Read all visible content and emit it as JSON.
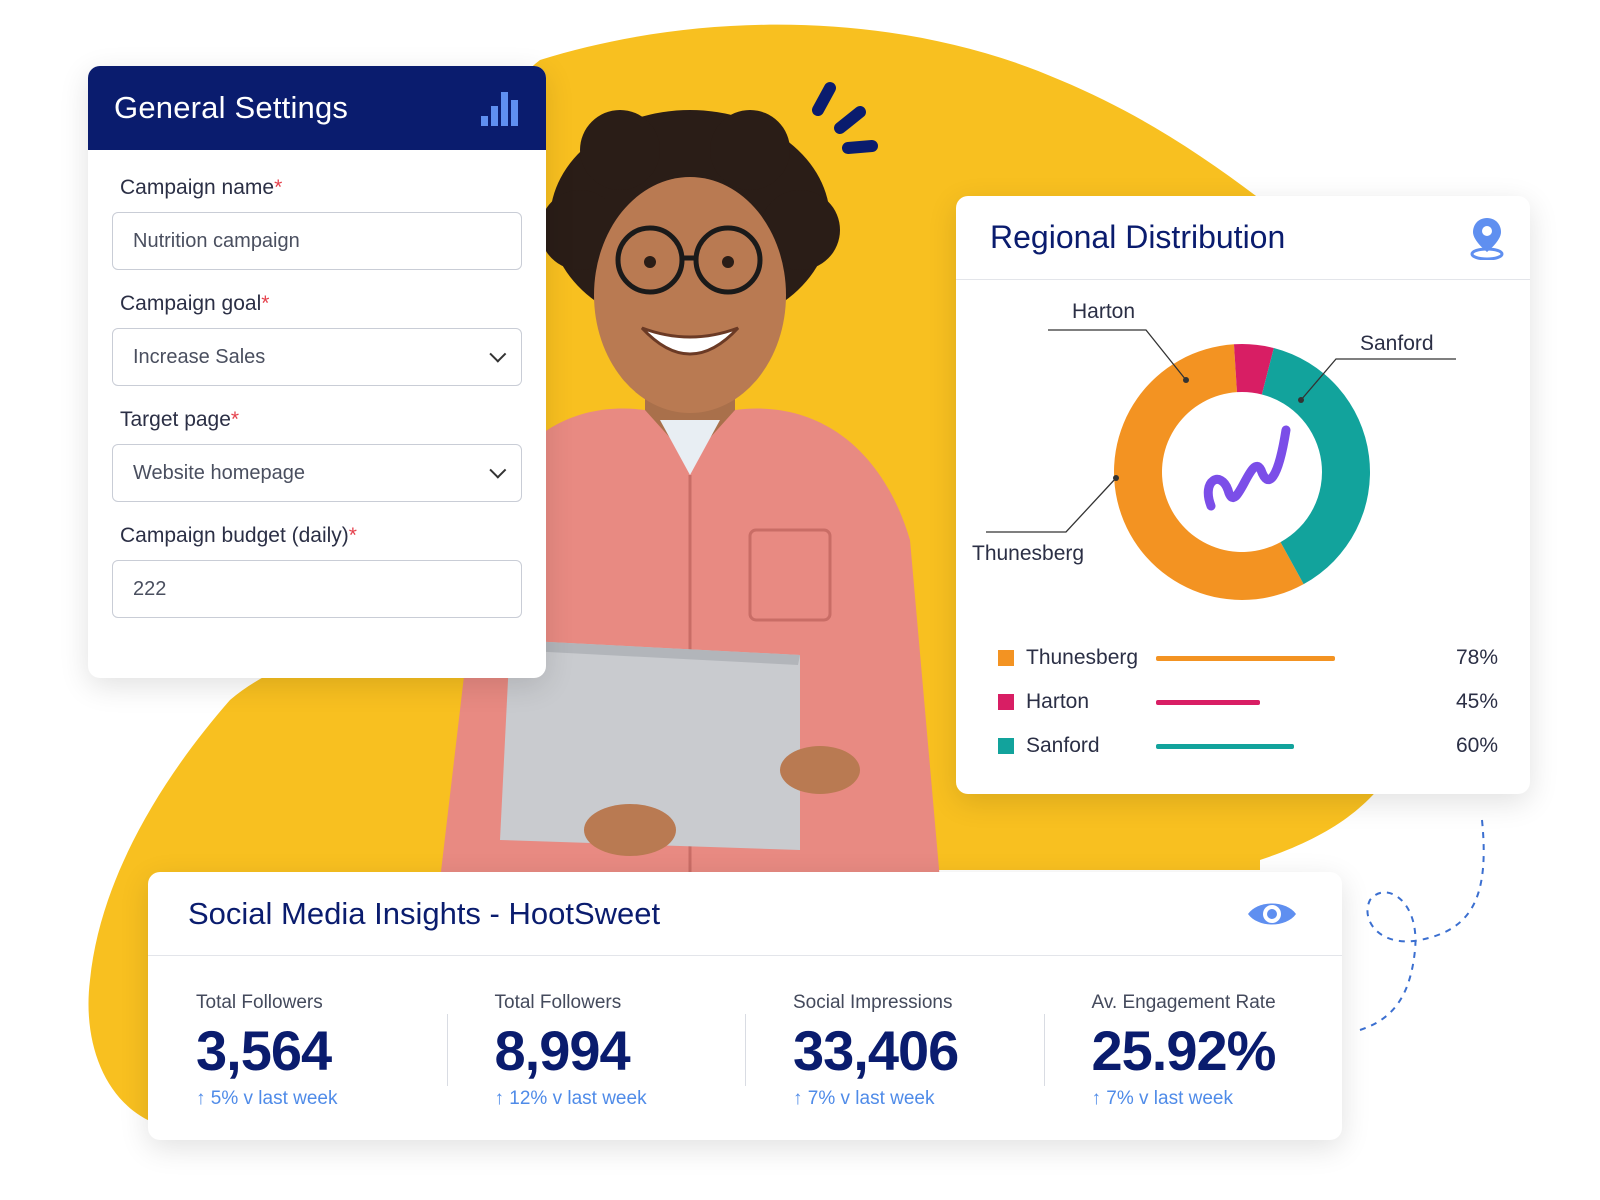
{
  "colors": {
    "brand_navy": "#0a1c6e",
    "accent_yellow": "#f8c020",
    "thunesberg": "#f39322",
    "harton": "#d81e64",
    "sanford": "#12a39c",
    "link_blue": "#4f8be8"
  },
  "settings": {
    "title": "General Settings",
    "icon": "bar-chart-icon",
    "fields": [
      {
        "label": "Campaign name",
        "required_mark": "*",
        "value": "Nutrition campaign",
        "type": "text"
      },
      {
        "label": "Campaign goal",
        "required_mark": "*",
        "value": "Increase Sales",
        "type": "select"
      },
      {
        "label": "Target page",
        "required_mark": "*",
        "value": "Website homepage",
        "type": "select"
      },
      {
        "label": "Campaign budget (daily)",
        "required_mark": "*",
        "value": "222",
        "type": "text"
      }
    ]
  },
  "region": {
    "title": "Regional Distribution",
    "icon": "map-pin-icon",
    "callouts": {
      "harton": "Harton",
      "sanford": "Sanford",
      "thunesberg": "Thunesberg"
    },
    "legend": [
      {
        "name": "Thunesberg",
        "value": 78,
        "pct": "78%"
      },
      {
        "name": "Harton",
        "value": 45,
        "pct": "45%"
      },
      {
        "name": "Sanford",
        "value": 60,
        "pct": "60%"
      }
    ]
  },
  "chart_data": {
    "type": "pie",
    "categories": [
      "Thunesberg",
      "Harton",
      "Sanford"
    ],
    "values": [
      57,
      5,
      38
    ],
    "title": "Regional Distribution"
  },
  "insights": {
    "title": "Social Media Insights - HootSweet",
    "icon": "eye-icon",
    "stats": [
      {
        "label": "Total Followers",
        "value": "3,564",
        "change": "↑ 5% v last week"
      },
      {
        "label": "Total Followers",
        "value": "8,994",
        "change": "↑ 12% v last week"
      },
      {
        "label": "Social Impressions",
        "value": "33,406",
        "change": "↑ 7% v last week"
      },
      {
        "label": "Av. Engagement Rate",
        "value": "25.92%",
        "change": "↑ 7% v last week"
      }
    ]
  }
}
